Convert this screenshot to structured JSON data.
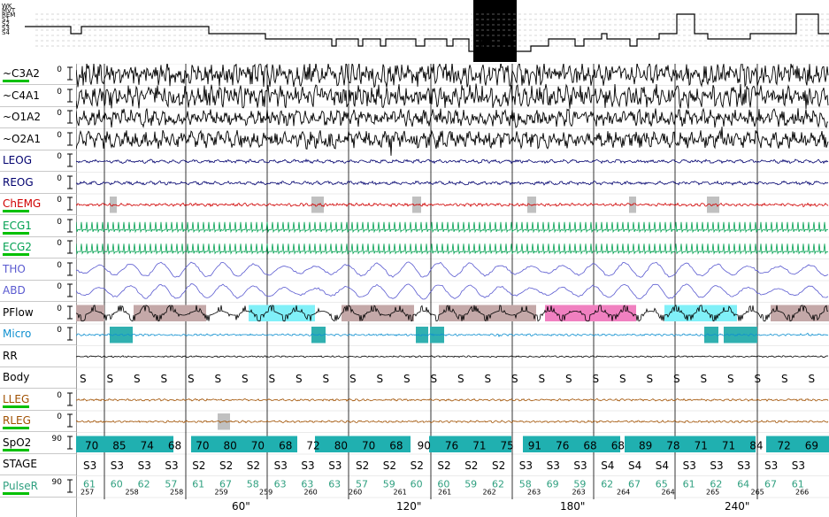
{
  "hypnogram": {
    "stage_labels": [
      "WK",
      "MVT",
      "REM",
      "S1",
      "S2",
      "S3",
      "S4"
    ]
  },
  "channels": [
    {
      "id": "c3a2",
      "label": "~C3A2",
      "zero": "0",
      "color": "#000000"
    },
    {
      "id": "c4a1",
      "label": "~C4A1",
      "zero": "0",
      "color": "#000000"
    },
    {
      "id": "o1a2",
      "label": "~O1A2",
      "zero": "0",
      "color": "#000000"
    },
    {
      "id": "o2a1",
      "label": "~O2A1",
      "zero": "0",
      "color": "#000000"
    },
    {
      "id": "leog",
      "label": "LEOG",
      "zero": "0",
      "color": "#00006e"
    },
    {
      "id": "reog",
      "label": "REOG",
      "zero": "0",
      "color": "#00006e"
    },
    {
      "id": "chemg",
      "label": "ChEMG",
      "zero": "0",
      "color": "#d00000"
    },
    {
      "id": "ecg1",
      "label": "ECG1",
      "zero": "0",
      "color": "#00a050"
    },
    {
      "id": "ecg2",
      "label": "ECG2",
      "zero": "0",
      "color": "#00a050"
    },
    {
      "id": "tho",
      "label": "THO",
      "zero": "0",
      "color": "#5a5ad0"
    },
    {
      "id": "abd",
      "label": "ABD",
      "zero": "0",
      "color": "#5a5ad0"
    },
    {
      "id": "pflow",
      "label": "PFlow",
      "zero": "0",
      "color": "#000000"
    },
    {
      "id": "micro",
      "label": "Micro",
      "zero": "0",
      "color": "#1090d0"
    },
    {
      "id": "rr",
      "label": "RR",
      "zero": "",
      "color": "#000000"
    },
    {
      "id": "body",
      "label": "Body",
      "zero": "",
      "color": "#000000"
    },
    {
      "id": "lleg",
      "label": "LLEG",
      "zero": "0",
      "color": "#a05000"
    },
    {
      "id": "rleg",
      "label": "RLEG",
      "zero": "0",
      "color": "#a05000"
    },
    {
      "id": "spo2",
      "label": "SpO2",
      "zero": "90",
      "color": "#000000"
    },
    {
      "id": "stage",
      "label": "STAGE",
      "zero": "",
      "color": "#000000"
    },
    {
      "id": "pulser",
      "label": "PulseR",
      "zero": "90",
      "color": "#30a080"
    }
  ],
  "body_marks": [
    "S",
    "S",
    "S",
    "S",
    "S",
    "S",
    "S",
    "S",
    "S",
    "S",
    "S",
    "S",
    "S",
    "S",
    "S",
    "S",
    "S",
    "S",
    "S",
    "S",
    "S",
    "S",
    "S",
    "S",
    "S",
    "S",
    "S",
    "S"
  ],
  "spo2_values": [
    "70",
    "85",
    "74",
    "68",
    "70",
    "80",
    "70",
    "68",
    "72",
    "80",
    "70",
    "68",
    "90",
    "76",
    "71",
    "75",
    "91",
    "76",
    "68",
    "68",
    "89",
    "78",
    "71",
    "71",
    "84",
    "72",
    "69"
  ],
  "stage_values": [
    "S3",
    "S3",
    "S3",
    "S3",
    "S2",
    "S2",
    "S2",
    "S3",
    "S3",
    "S3",
    "S2",
    "S2",
    "S2",
    "S2",
    "S2",
    "S2",
    "S3",
    "S3",
    "S3",
    "S4",
    "S4",
    "S4",
    "S3",
    "S3",
    "S3",
    "S3",
    "S3"
  ],
  "pulse_values": [
    "61",
    "60",
    "62",
    "57",
    "61",
    "67",
    "58",
    "63",
    "63",
    "63",
    "57",
    "59",
    "60",
    "60",
    "59",
    "62",
    "58",
    "69",
    "59",
    "62",
    "67",
    "65",
    "61",
    "62",
    "64",
    "67",
    "61"
  ],
  "epoch_numbers": [
    "257",
    "258",
    "258",
    "259",
    "259",
    "260",
    "260",
    "261",
    "261",
    "262",
    "263",
    "263",
    "264",
    "264",
    "265",
    "265",
    "266"
  ],
  "axis_labels": [
    "60\"",
    "120\"",
    "180\"",
    "240\""
  ],
  "colors": {
    "apnea_brown": "#c4a8a8",
    "apnea_cyan": "#80f0f8",
    "apnea_pink": "#f080c0",
    "micro_teal": "#30b0b0",
    "spo2_teal": "#20b0b0",
    "grid": "#000000"
  }
}
